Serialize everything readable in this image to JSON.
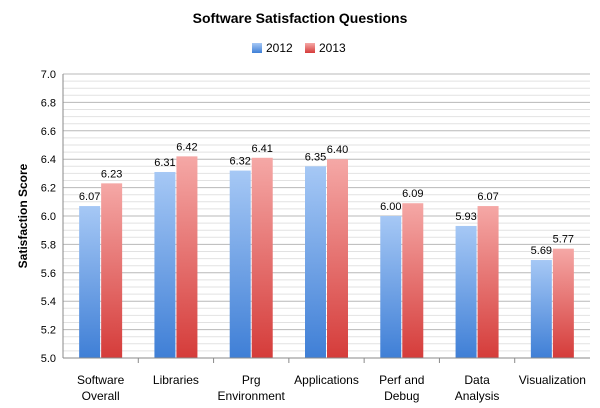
{
  "chart_data": {
    "type": "bar",
    "title": "Software Satisfaction Questions",
    "xlabel": "",
    "ylabel": "Satisfaction Score",
    "ylim": [
      5.0,
      7.0
    ],
    "yticks": [
      "5.0",
      "5.2",
      "5.4",
      "5.6",
      "5.8",
      "6.0",
      "6.2",
      "6.4",
      "6.6",
      "6.8",
      "7.0"
    ],
    "grid": true,
    "legend_position": "top-center",
    "categories": [
      [
        "Software",
        "Overall"
      ],
      [
        "Libraries"
      ],
      [
        "Prg",
        "Environment"
      ],
      [
        "Applications"
      ],
      [
        "Perf and",
        "Debug"
      ],
      [
        "Data",
        "Analysis"
      ],
      [
        "Visualization"
      ]
    ],
    "series": [
      {
        "name": "2012",
        "color_top": "#a6c8f5",
        "color_bottom": "#3f7fd6",
        "values": [
          6.07,
          6.31,
          6.32,
          6.35,
          6.0,
          5.93,
          5.69
        ],
        "labels": [
          "6.07",
          "6.31",
          "6.32",
          "6.35",
          "6.00",
          "5.93",
          "5.69"
        ]
      },
      {
        "name": "2013",
        "color_top": "#f5a8a6",
        "color_bottom": "#d53c3a",
        "values": [
          6.23,
          6.42,
          6.41,
          6.4,
          6.09,
          6.07,
          5.77
        ],
        "labels": [
          "6.23",
          "6.42",
          "6.41",
          "6.40",
          "6.09",
          "6.07",
          "5.77"
        ]
      }
    ]
  }
}
